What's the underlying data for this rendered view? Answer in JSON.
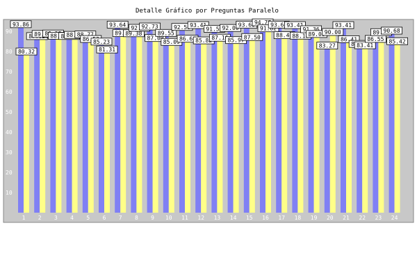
{
  "title": "Detalle Gráfico por Preguntas Paralelo",
  "colors": {
    "background": "#ffffff",
    "plot_bg": "#c8c8c8",
    "series_a": "#8080f4",
    "series_b": "#ffff88",
    "label_bg": "#ffffff",
    "label_border": "#000000"
  },
  "chart_data": {
    "type": "bar",
    "title": "Detalle Gráfico por Preguntas Paralelo",
    "xlabel": "",
    "ylabel": "",
    "ylim": [
      0,
      100
    ],
    "yticks": [
      10,
      20,
      30,
      40,
      50,
      60,
      70,
      80,
      90
    ],
    "grid": false,
    "legend": "none",
    "categories": [
      "1",
      "2",
      "3",
      "4",
      "5",
      "6",
      "7",
      "8",
      "9",
      "10",
      "11",
      "12",
      "13",
      "14",
      "15",
      "16",
      "17",
      "18",
      "19",
      "20",
      "21",
      "22",
      "23",
      "24"
    ],
    "series": [
      {
        "values": [
          93.86,
          87.95,
          89.23,
          88.01,
          88.77,
          85.23,
          93.64,
          89.38,
          92.73,
          89.55,
          92.5,
          93.41,
          91.59,
          92.0,
          93.6,
          94.77,
          93.64,
          93.41,
          91.36,
          83.27,
          93.41,
          84.09,
          86.55,
          90.68
        ]
      },
      {
        "values": [
          80.32,
          89.02,
          88.11,
          88.56,
          86.53,
          81.31,
          89.43,
          92.05,
          87.0,
          85.09,
          86.64,
          85.82,
          87.16,
          85.97,
          87.5,
          91.82,
          88.4,
          88.18,
          89.0,
          90.0,
          86.41,
          83.41,
          89.91,
          85.42
        ]
      }
    ]
  }
}
